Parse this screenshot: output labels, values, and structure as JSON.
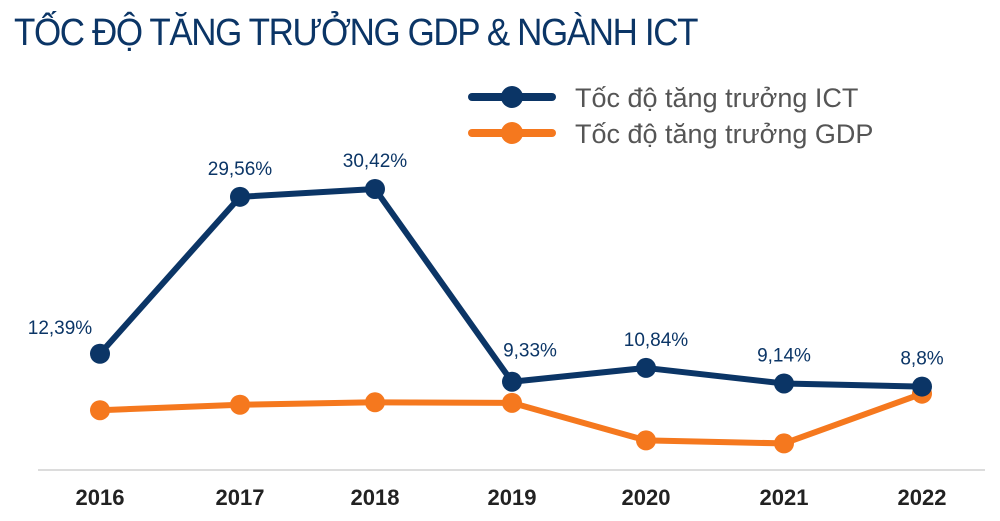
{
  "title": "TỐC ĐỘ TĂNG TRƯỞNG GDP & NGÀNH ICT",
  "chart_data": {
    "type": "line",
    "title": "TỐC ĐỘ TĂNG TRƯỞNG GDP & NGÀNH ICT",
    "categories": [
      "2016",
      "2017",
      "2018",
      "2019",
      "2020",
      "2021",
      "2022"
    ],
    "legend_position": "top-right",
    "grid": false,
    "series": [
      {
        "name": "Tốc độ tăng trưởng ICT",
        "color": "#0b3566",
        "values": [
          12.39,
          29.56,
          30.42,
          9.33,
          10.84,
          9.14,
          8.8
        ],
        "labels": [
          "12,39%",
          "29,56%",
          "30,42%",
          "9,33%",
          "10,84%",
          "9,14%",
          "8,8%"
        ]
      },
      {
        "name": "Tốc độ tăng trưởng GDP",
        "color": "#f5781e",
        "values": [
          6.21,
          6.81,
          7.08,
          7.02,
          2.91,
          2.58,
          8.02
        ]
      }
    ]
  }
}
